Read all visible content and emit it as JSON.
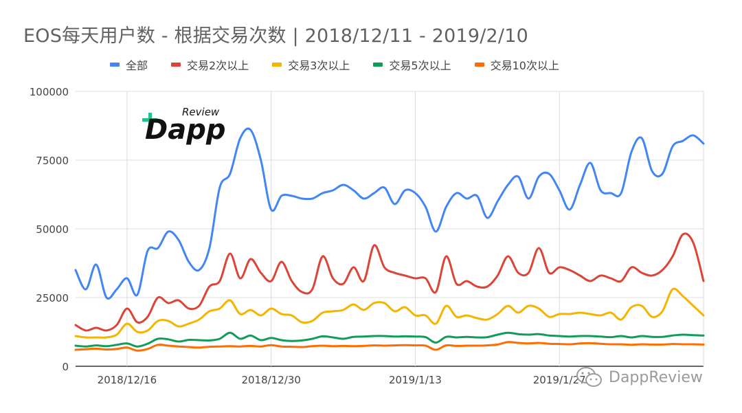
{
  "title": "EOS每天用户数 - 根据交易次数 | 2018/12/11 - 2019/2/10",
  "watermark": "DappReview",
  "logo": {
    "text": "Dapp",
    "small": "Review"
  },
  "chart_data": {
    "type": "line",
    "title": "EOS每天用户数 - 根据交易次数 | 2018/12/11 - 2019/2/10",
    "xlabel": "",
    "ylabel": "",
    "x_start": "2018/12/11",
    "x_end": "2019/2/10",
    "ylim": [
      0,
      100000
    ],
    "yticks": [
      0,
      25000,
      50000,
      75000,
      100000
    ],
    "ytick_labels": [
      "0",
      "25000",
      "50000",
      "75000",
      "100000"
    ],
    "xtick_labels": [
      "2018/12/16",
      "2018/12/30",
      "2019/1/13",
      "2019/1/27"
    ],
    "grid": true,
    "legend_position": "top",
    "series": [
      {
        "name": "全部",
        "color": "#4285F4",
        "values": [
          35000,
          28000,
          37000,
          25000,
          28000,
          32000,
          26000,
          42000,
          43000,
          49000,
          46000,
          38000,
          35000,
          43000,
          65000,
          70000,
          83000,
          86000,
          75000,
          57000,
          62000,
          62000,
          61000,
          61000,
          63000,
          64000,
          66000,
          64000,
          61000,
          63000,
          65000,
          59000,
          64000,
          63000,
          58000,
          49000,
          58000,
          63000,
          61000,
          62000,
          54000,
          60000,
          66000,
          69000,
          61000,
          69000,
          70000,
          64000,
          57000,
          66000,
          74000,
          64000,
          63000,
          63000,
          78000,
          83000,
          71000,
          70000,
          80000,
          82000,
          84000,
          81000
        ]
      },
      {
        "name": "交易2次以上",
        "color": "#DB4437",
        "values": [
          15000,
          13000,
          14000,
          13000,
          15000,
          21000,
          16000,
          18000,
          25000,
          23000,
          24000,
          21000,
          22000,
          29000,
          31000,
          41000,
          32000,
          39000,
          34000,
          31000,
          38000,
          31000,
          27000,
          28000,
          40000,
          32000,
          30000,
          36000,
          31000,
          44000,
          36000,
          34000,
          33000,
          32000,
          32000,
          27000,
          40000,
          30000,
          31000,
          29000,
          29000,
          33000,
          40000,
          34000,
          34000,
          43000,
          34000,
          36000,
          35000,
          33000,
          31000,
          33000,
          32000,
          31000,
          36000,
          34000,
          33000,
          35000,
          40000,
          48000,
          45000,
          31000
        ]
      },
      {
        "name": "交易3次以上",
        "color": "#F4B400",
        "values": [
          11000,
          10500,
          10500,
          10500,
          11500,
          15500,
          12500,
          13000,
          16500,
          16500,
          14500,
          15500,
          17000,
          20000,
          21000,
          24000,
          19000,
          20500,
          18500,
          21000,
          19000,
          18500,
          16000,
          16500,
          19500,
          20000,
          20500,
          22500,
          20500,
          23000,
          23000,
          20000,
          21500,
          18500,
          18500,
          15500,
          22000,
          18000,
          18500,
          17500,
          17000,
          19000,
          22000,
          19500,
          22000,
          21000,
          18000,
          19000,
          19000,
          19500,
          19000,
          18500,
          19500,
          17000,
          21500,
          22000,
          18000,
          20000,
          28000,
          25500,
          22000,
          18500
        ]
      },
      {
        "name": "交易5次以上",
        "color": "#0F9D58",
        "values": [
          7500,
          7200,
          7600,
          7300,
          7800,
          8300,
          7200,
          8200,
          10000,
          9800,
          9000,
          9600,
          9500,
          9400,
          10000,
          12200,
          10000,
          11200,
          9500,
          10300,
          9500,
          9200,
          9400,
          10000,
          10900,
          10500,
          10000,
          10700,
          10800,
          11000,
          11000,
          10800,
          10900,
          10800,
          10600,
          8600,
          10700,
          10500,
          10700,
          10500,
          10600,
          11500,
          12200,
          11700,
          11500,
          11700,
          11200,
          11000,
          10800,
          11000,
          11000,
          10800,
          10600,
          11000,
          10500,
          11000,
          10700,
          10700,
          11200,
          11500,
          11300,
          11200
        ]
      },
      {
        "name": "交易10次以上",
        "color": "#FF6D00",
        "values": [
          6000,
          6200,
          6400,
          6100,
          6300,
          6800,
          5700,
          6300,
          7800,
          7500,
          7200,
          7000,
          6800,
          7100,
          7200,
          7300,
          7200,
          7400,
          7200,
          7700,
          7200,
          7100,
          7000,
          7300,
          7500,
          7300,
          7400,
          7300,
          7400,
          7600,
          7500,
          7600,
          7700,
          7600,
          7500,
          6000,
          7600,
          7400,
          7500,
          7500,
          7600,
          7900,
          8800,
          8500,
          8300,
          8500,
          8200,
          8100,
          8000,
          8300,
          8400,
          8200,
          8000,
          8000,
          7800,
          8000,
          7900,
          7900,
          8100,
          8000,
          8000,
          7900
        ]
      }
    ]
  }
}
